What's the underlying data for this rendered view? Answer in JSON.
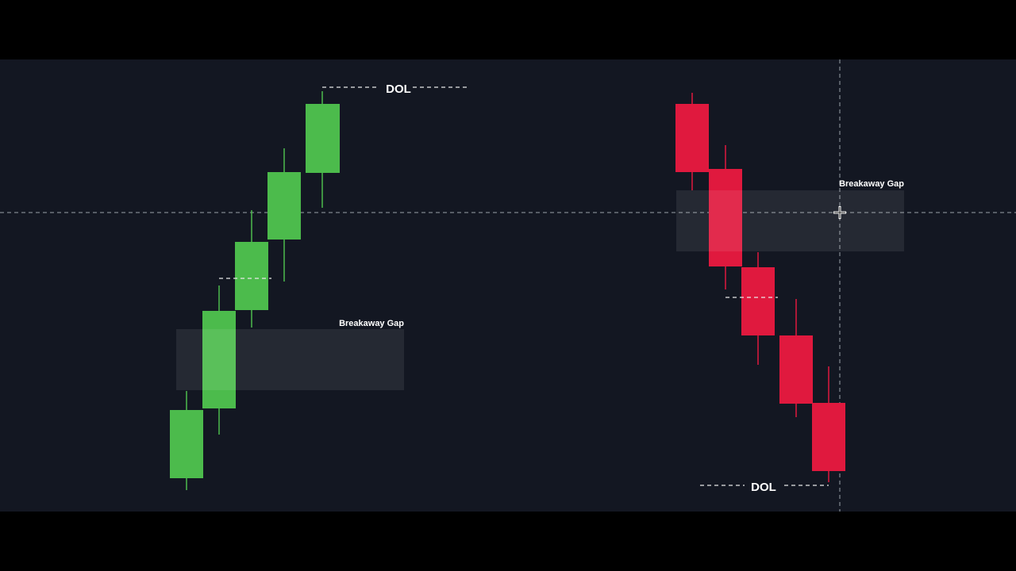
{
  "left": {
    "target_label": "DOL",
    "gap_label": "Breakaway Gap"
  },
  "right": {
    "target_label": "DOL",
    "gap_label": "Breakaway Gap"
  }
}
